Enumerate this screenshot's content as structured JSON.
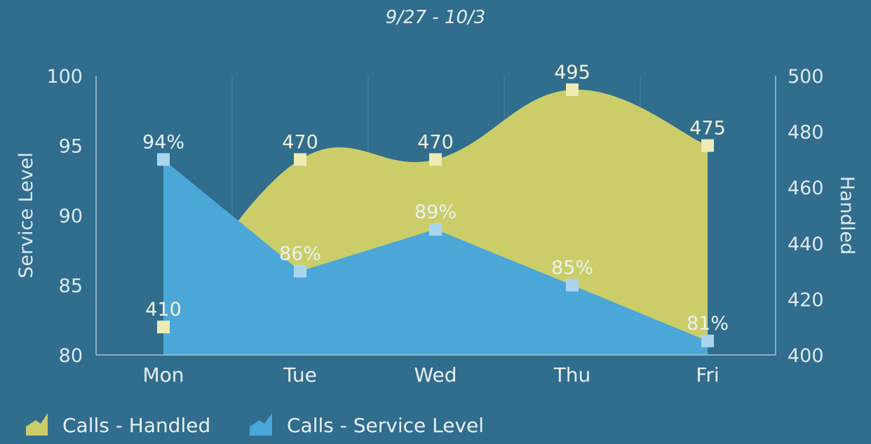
{
  "chart_data": {
    "type": "area",
    "title": "9/27 - 10/3",
    "categories": [
      "Mon",
      "Tue",
      "Wed",
      "Thu",
      "Fri"
    ],
    "y_left": {
      "label": "Service Level",
      "range": [
        80,
        100
      ],
      "ticks": [
        "100",
        "95",
        "90",
        "85",
        "80"
      ]
    },
    "y_right": {
      "label": "Handled",
      "range": [
        400,
        500
      ],
      "ticks": [
        "500",
        "480",
        "460",
        "440",
        "420",
        "400"
      ]
    },
    "series": [
      {
        "name": "Calls - Handled",
        "axis": "right",
        "values": [
          410,
          470,
          470,
          495,
          475
        ],
        "labels": [
          "410",
          "470",
          "470",
          "495",
          "475"
        ],
        "color": "#cbcd68",
        "marker_color": "#ecebb4"
      },
      {
        "name": "Calls - Service Level",
        "axis": "left",
        "values": [
          94,
          86,
          89,
          85,
          81
        ],
        "labels": [
          "94%",
          "86%",
          "89%",
          "85%",
          "81%"
        ],
        "color": "#4aa7d8",
        "marker_color": "#a9d5ef"
      }
    ],
    "grid": true,
    "legend_position": "bottom-left"
  }
}
